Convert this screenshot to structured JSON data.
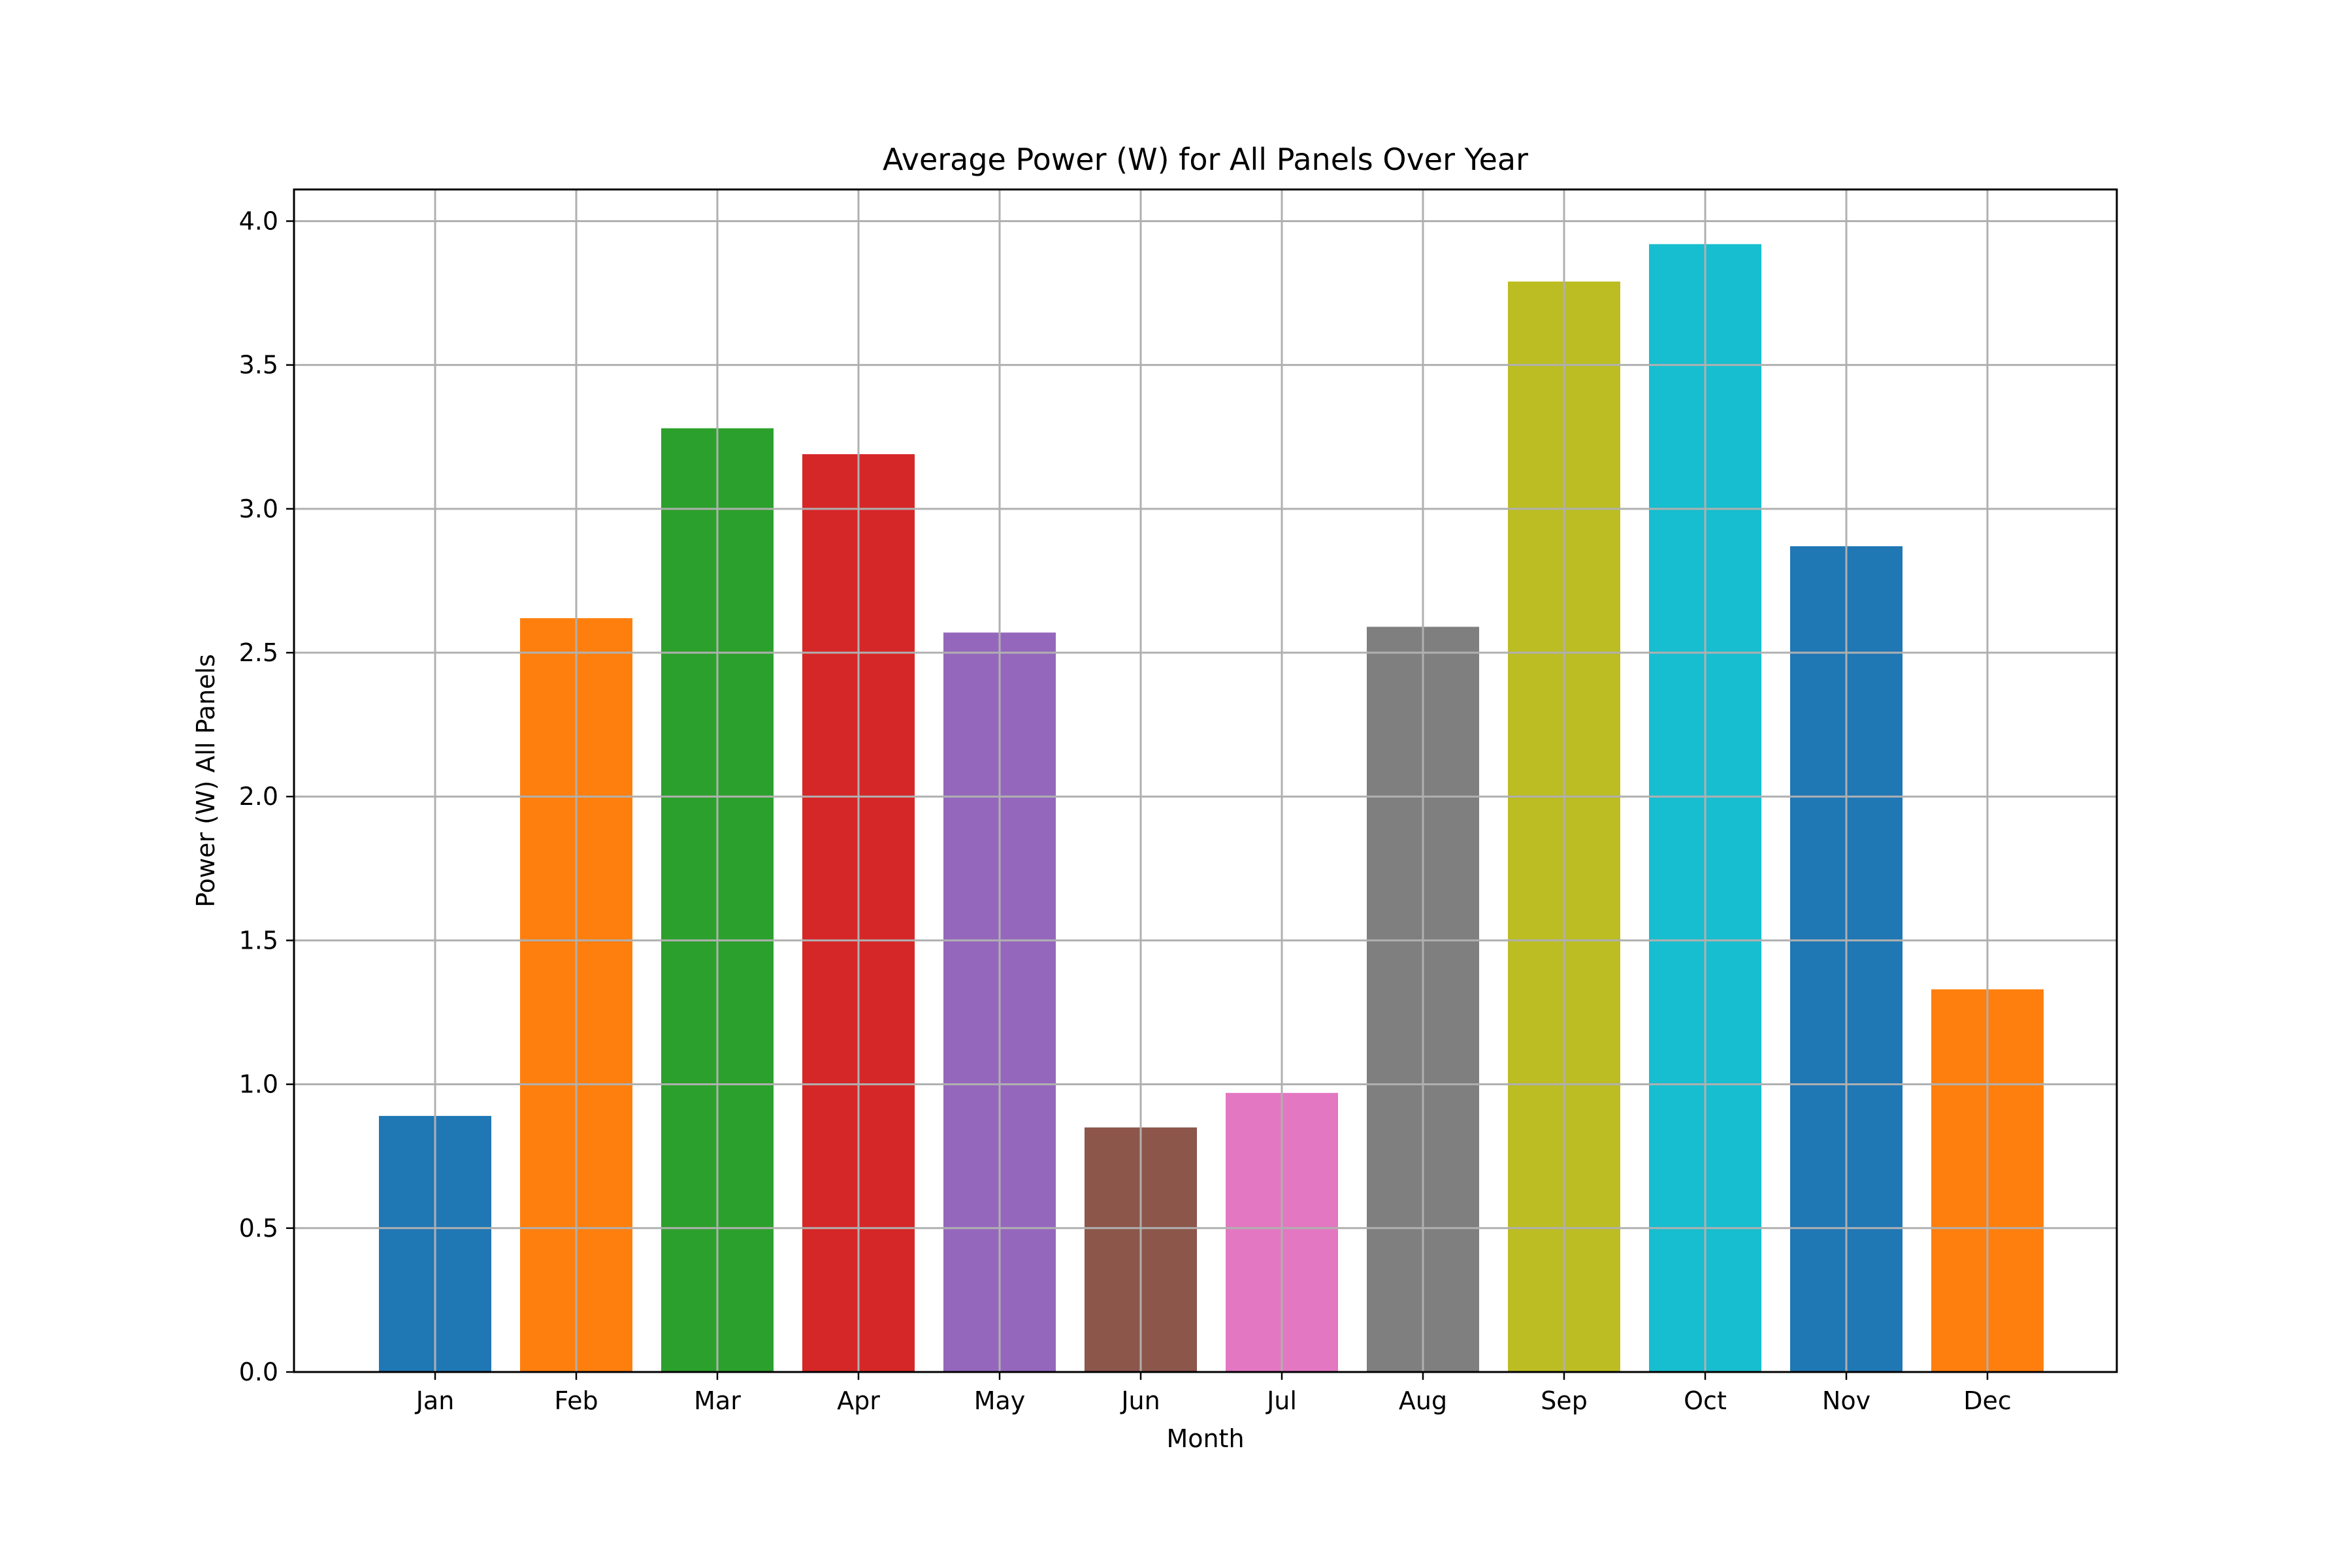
{
  "chart_data": {
    "type": "bar",
    "title": "Average Power (W) for All Panels Over Year",
    "xlabel": "Month",
    "ylabel": "Power (W) All Panels",
    "categories": [
      "Jan",
      "Feb",
      "Mar",
      "Apr",
      "May",
      "Jun",
      "Jul",
      "Aug",
      "Sep",
      "Oct",
      "Nov",
      "Dec"
    ],
    "values": [
      0.89,
      2.62,
      3.28,
      3.19,
      2.57,
      0.85,
      0.97,
      2.59,
      3.79,
      3.92,
      2.87,
      1.33
    ],
    "colors": [
      "#1f77b4",
      "#ff7f0e",
      "#2ca02c",
      "#d62728",
      "#9467bd",
      "#8c564b",
      "#e377c2",
      "#7f7f7f",
      "#bcbd22",
      "#17becf",
      "#1f77b4",
      "#ff7f0e"
    ],
    "ylim": [
      0,
      4.11
    ],
    "yticks": [
      "0.0",
      "0.5",
      "1.0",
      "1.5",
      "2.0",
      "2.5",
      "3.0",
      "3.5",
      "4.0"
    ],
    "grid": true,
    "legend": false
  }
}
